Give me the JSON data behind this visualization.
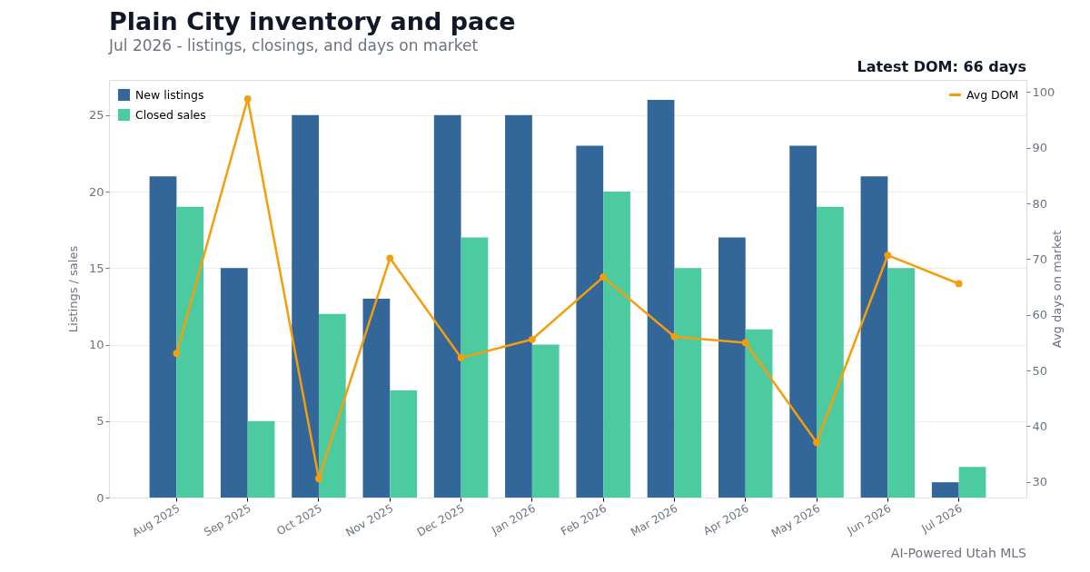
{
  "chart_data": {
    "type": "bar",
    "title": "Plain City inventory and pace",
    "subtitle": "Jul 2026 - listings, closings, and days on market",
    "ylabel": "Listings / sales",
    "y2label": "Avg days on market",
    "categories": [
      "Aug 2025",
      "Sep 2025",
      "Oct 2025",
      "Nov 2025",
      "Dec 2025",
      "Jan 2026",
      "Feb 2026",
      "Mar 2026",
      "Apr 2026",
      "May 2026",
      "Jun 2026",
      "Jul 2026"
    ],
    "series": [
      {
        "name": "New listings",
        "color": "#336699",
        "values": [
          21,
          15,
          25,
          13,
          25,
          25,
          23,
          26,
          17,
          23,
          21,
          1
        ]
      },
      {
        "name": "Closed sales",
        "color": "#4bcb9f",
        "values": [
          19,
          5,
          12,
          7,
          17,
          10,
          20,
          15,
          11,
          19,
          15,
          2
        ]
      },
      {
        "name": "Avg DOM",
        "type": "line",
        "axis": "y2",
        "color": "#f59e0b",
        "values": [
          53.1,
          98.8,
          30.6,
          70.2,
          52.3,
          55.6,
          66.8,
          56.1,
          55.0,
          37.1,
          70.7,
          65.6
        ]
      }
    ],
    "ylim": [
      0,
      27.3
    ],
    "yticks": [
      0,
      5,
      10,
      15,
      20,
      25
    ],
    "y2lim": [
      27.2,
      102.2
    ],
    "y2ticks": [
      30,
      40,
      50,
      60,
      70,
      80,
      90,
      100
    ],
    "grid": "y",
    "legend": "top",
    "marker": "circle",
    "annotations": [
      "Latest DOM: 66 days",
      "AI-Powered Utah MLS"
    ]
  }
}
